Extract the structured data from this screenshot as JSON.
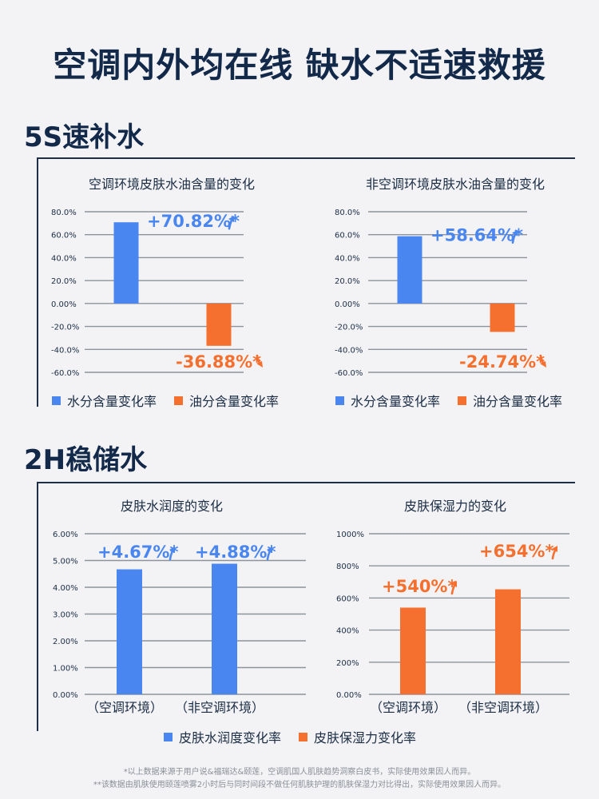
{
  "headline": "空调内外均在线  缺水不适速救援",
  "section1": {
    "title": "5S速补水",
    "legend": [
      {
        "label": "水分含量变化率",
        "color": "#4a86f0"
      },
      {
        "label": "油分含量变化率",
        "color": "#f5702f"
      }
    ]
  },
  "section2": {
    "title": "2H稳储水",
    "legend": [
      {
        "label": "皮肤水润度变化率",
        "color": "#4a86f0"
      },
      {
        "label": "皮肤保湿力变化率",
        "color": "#f5702f"
      }
    ]
  },
  "footnotes": [
    "*以上数据来源于用户说&福瑞达&颐莲，空调肌国人肌肤趋势洞察白皮书，实际使用效果因人而异。",
    "**该数据由肌肤使用颐莲喷雾2小时后与同时间段不做任何肌肤护理的肌肤保湿力对比得出，实际使用效果因人而异。"
  ],
  "chart_data": [
    {
      "type": "bar",
      "title": "空调环境皮肤水油含量的变化",
      "ylim": [
        -60,
        80
      ],
      "yticks": [
        "80.0%",
        "60.0%",
        "40.0%",
        "20.0%",
        "0.00%",
        "-20.0%",
        "-40.0%",
        "-60.0%"
      ],
      "ytick_values": [
        80,
        60,
        40,
        20,
        0,
        -20,
        -40,
        -60
      ],
      "series": [
        {
          "name": "水分含量变化率",
          "value": 70.82,
          "color": "#4a86f0",
          "label": "+70.82%*"
        },
        {
          "name": "油分含量变化率",
          "value": -36.88,
          "color": "#f5702f",
          "label": "-36.88%*"
        }
      ],
      "grid": true
    },
    {
      "type": "bar",
      "title": "非空调环境皮肤水油含量的变化",
      "ylim": [
        -60,
        80
      ],
      "yticks": [
        "80.0%",
        "60.0%",
        "40.0%",
        "20.0%",
        "0.00%",
        "-20.0%",
        "-40.0%",
        "-60.0%"
      ],
      "ytick_values": [
        80,
        60,
        40,
        20,
        0,
        -20,
        -40,
        -60
      ],
      "series": [
        {
          "name": "水分含量变化率",
          "value": 58.64,
          "color": "#4a86f0",
          "label": "+58.64%*"
        },
        {
          "name": "油分含量变化率",
          "value": -24.74,
          "color": "#f5702f",
          "label": "-24.74%*"
        }
      ],
      "grid": true
    },
    {
      "type": "bar",
      "title": "皮肤水润度的变化",
      "ylim": [
        0,
        6
      ],
      "yticks": [
        "6.00%",
        "5.00%",
        "4.00%",
        "3.00%",
        "2.00%",
        "1.00%",
        "0.00%"
      ],
      "ytick_values": [
        6,
        5,
        4,
        3,
        2,
        1,
        0
      ],
      "categories": [
        "（空调环境）",
        "（非空调环境）"
      ],
      "series": [
        {
          "name": "皮肤水润度变化率",
          "color": "#4a86f0",
          "values": [
            4.67,
            4.88
          ],
          "labels": [
            "+4.67%*",
            "+4.88%*"
          ]
        }
      ],
      "grid": true
    },
    {
      "type": "bar",
      "title": "皮肤保湿力的变化",
      "ylim": [
        0,
        1000
      ],
      "yticks": [
        "1000%",
        "800%",
        "600%",
        "400%",
        "200%",
        "0.00%"
      ],
      "ytick_values": [
        1000,
        800,
        600,
        400,
        200,
        0
      ],
      "categories": [
        "（空调环境）",
        "（非空调环境）"
      ],
      "series": [
        {
          "name": "皮肤保湿力变化率",
          "color": "#f5702f",
          "values": [
            540,
            654
          ],
          "labels": [
            "+540%*",
            "+654%*"
          ]
        }
      ],
      "grid": true
    }
  ]
}
